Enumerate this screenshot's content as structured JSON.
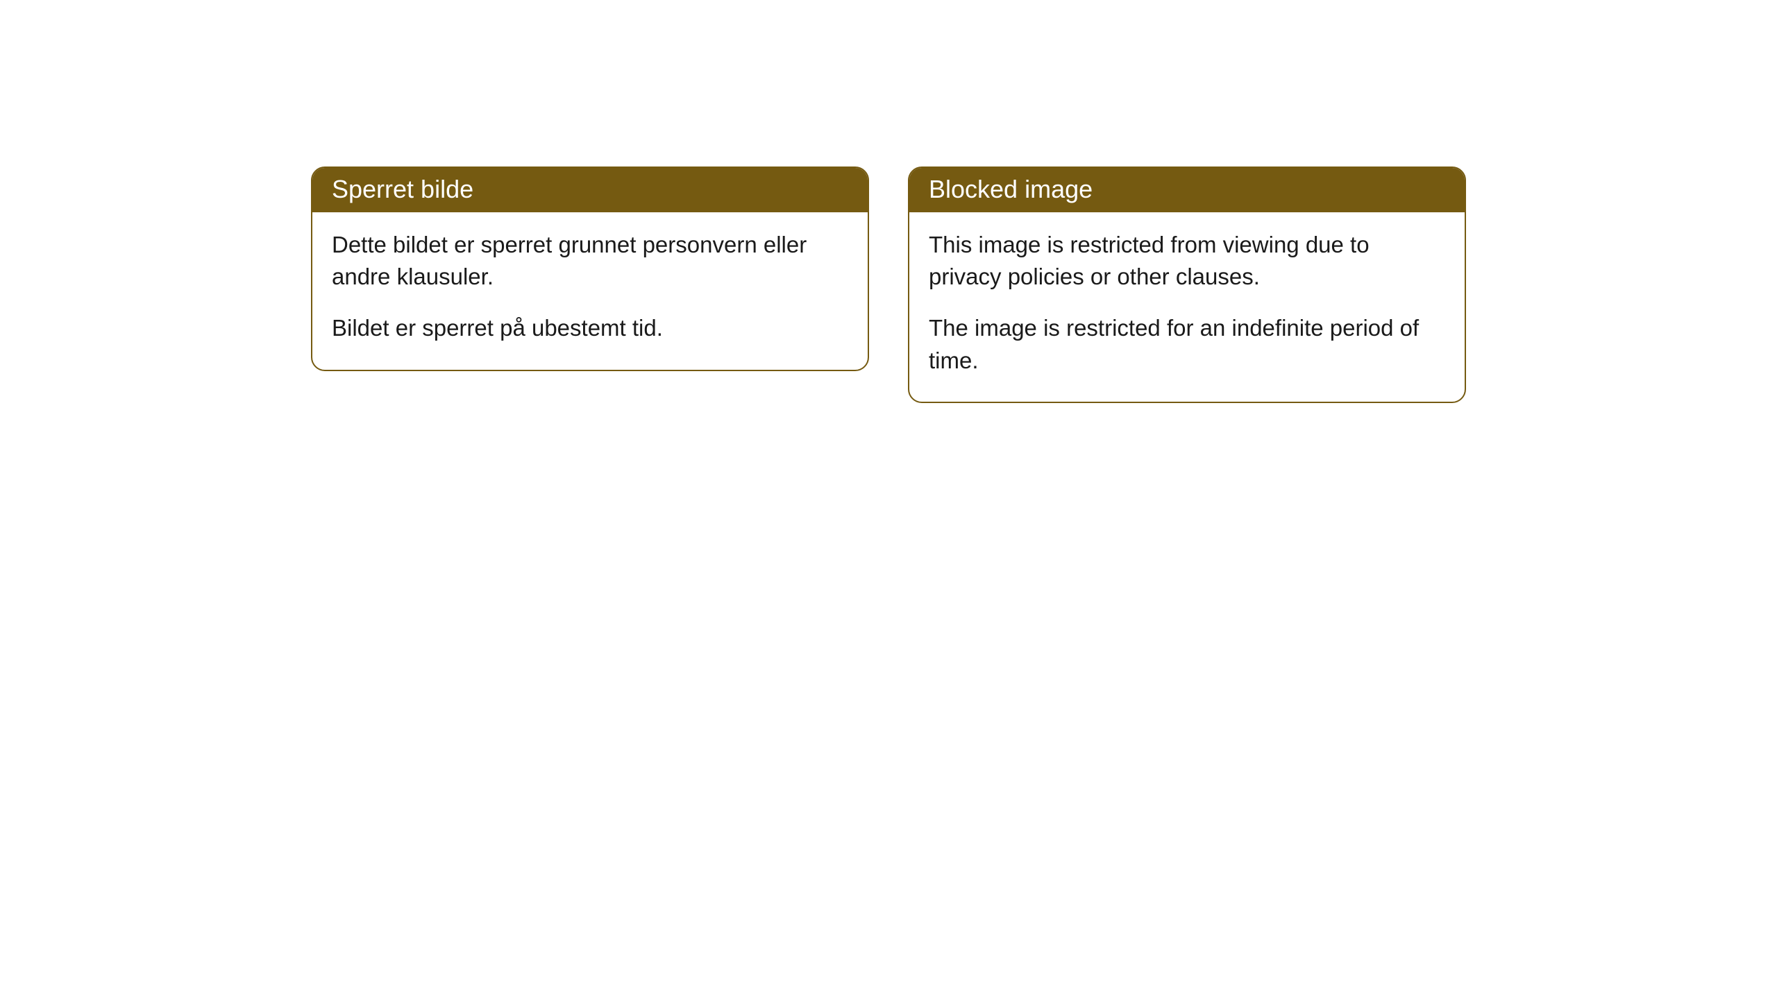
{
  "cards": [
    {
      "title": "Sperret bilde",
      "paragraph1": "Dette bildet er sperret grunnet personvern eller andre klausuler.",
      "paragraph2": "Bildet er sperret på ubestemt tid."
    },
    {
      "title": "Blocked image",
      "paragraph1": "This image is restricted from viewing due to privacy policies or other clauses.",
      "paragraph2": "The image is restricted for an indefinite period of time."
    }
  ],
  "styling": {
    "header_background": "#755a11",
    "header_text_color": "#ffffff",
    "border_color": "#755a11",
    "body_text_color": "#1a1a1a",
    "card_background": "#ffffff",
    "border_radius": "20px",
    "header_fontsize": "36px",
    "body_fontsize": "33px"
  }
}
